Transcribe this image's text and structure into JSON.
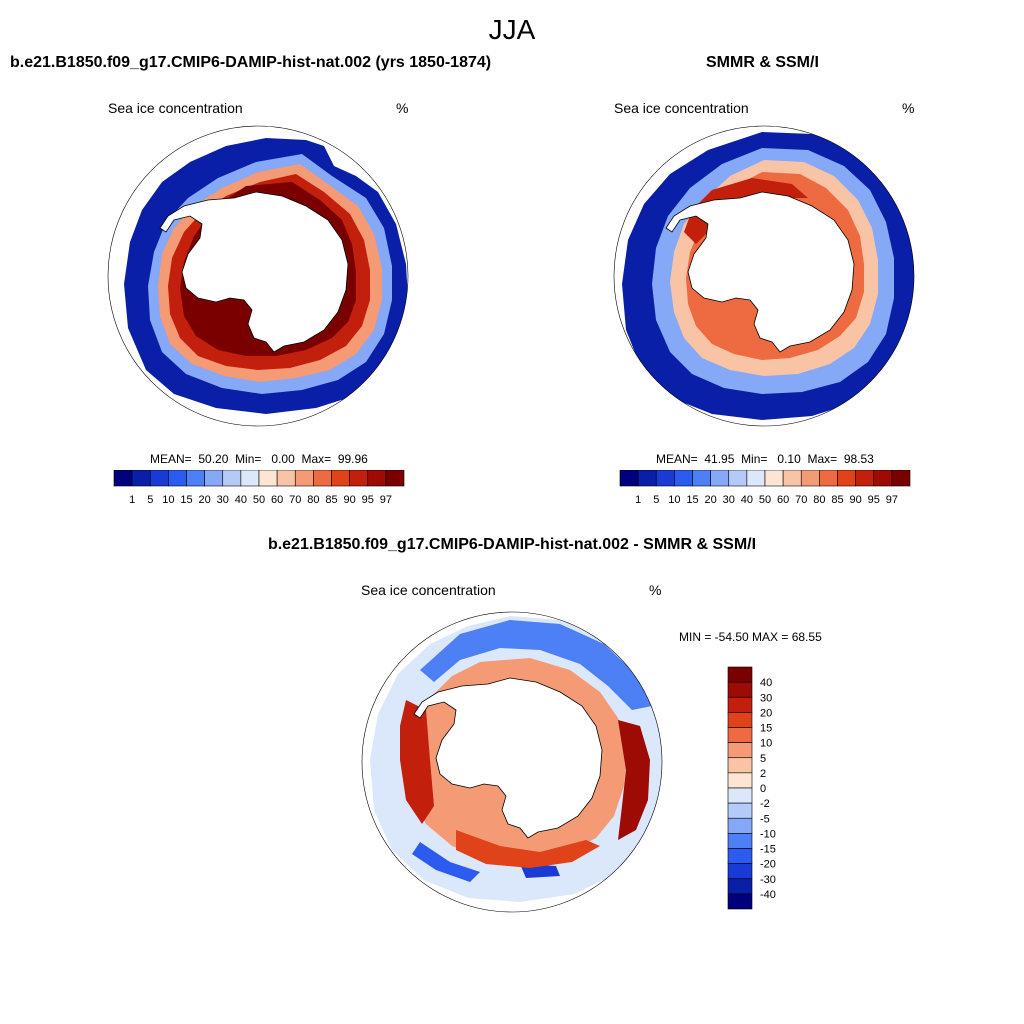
{
  "season": "JJA",
  "panels": [
    {
      "title": "b.e21.B1850.f09_g17.CMIP6-DAMIP-hist-nat.002 (yrs 1850-1874)",
      "variable": "Sea ice concentration",
      "units": "%",
      "stats": {
        "mean_label": "MEAN=",
        "mean": "50.20",
        "min_label": "Min=",
        "min": "0.00",
        "max_label": "Max=",
        "max": "99.96"
      },
      "levels": [
        "1",
        "5",
        "10",
        "15",
        "20",
        "30",
        "40",
        "50",
        "60",
        "70",
        "80",
        "85",
        "90",
        "95",
        "97"
      ]
    },
    {
      "title": "SMMR & SSM/I",
      "variable": "Sea ice concentration",
      "units": "%",
      "stats": {
        "mean_label": "MEAN=",
        "mean": "41.95",
        "min_label": "Min=",
        "min": "0.10",
        "max_label": "Max=",
        "max": "98.53"
      },
      "levels": [
        "1",
        "5",
        "10",
        "15",
        "20",
        "30",
        "40",
        "50",
        "60",
        "70",
        "80",
        "85",
        "90",
        "95",
        "97"
      ]
    },
    {
      "title": "b.e21.B1850.f09_g17.CMIP6-DAMIP-hist-nat.002 - SMMR & SSM/I",
      "variable": "Sea ice concentration",
      "units": "%",
      "minmax_label": "MIN = -54.50 MAX =  68.55",
      "levels": [
        "40",
        "30",
        "20",
        "15",
        "10",
        "5",
        "2",
        "0",
        "-2",
        "-5",
        "-10",
        "-15",
        "-20",
        "-30",
        "-40"
      ]
    }
  ],
  "colors": {
    "concentration": [
      "#00007f",
      "#0a1fa8",
      "#1a3ad6",
      "#2c5bf0",
      "#4d7ff5",
      "#85a8f7",
      "#b4cbf8",
      "#dbe7fb",
      "#fde5d4",
      "#f9c4a6",
      "#f49a75",
      "#ee6b41",
      "#e0421a",
      "#c21f0c",
      "#9e0a04",
      "#7a0000"
    ],
    "difference": [
      "#7a0000",
      "#9e0a04",
      "#c21f0c",
      "#e0421a",
      "#ee6b41",
      "#f49a75",
      "#f9c4a6",
      "#fde5d4",
      "#dbe7fb",
      "#b4cbf8",
      "#85a8f7",
      "#4d7ff5",
      "#2c5bf0",
      "#1a3ad6",
      "#0a1fa8",
      "#00007f"
    ]
  }
}
